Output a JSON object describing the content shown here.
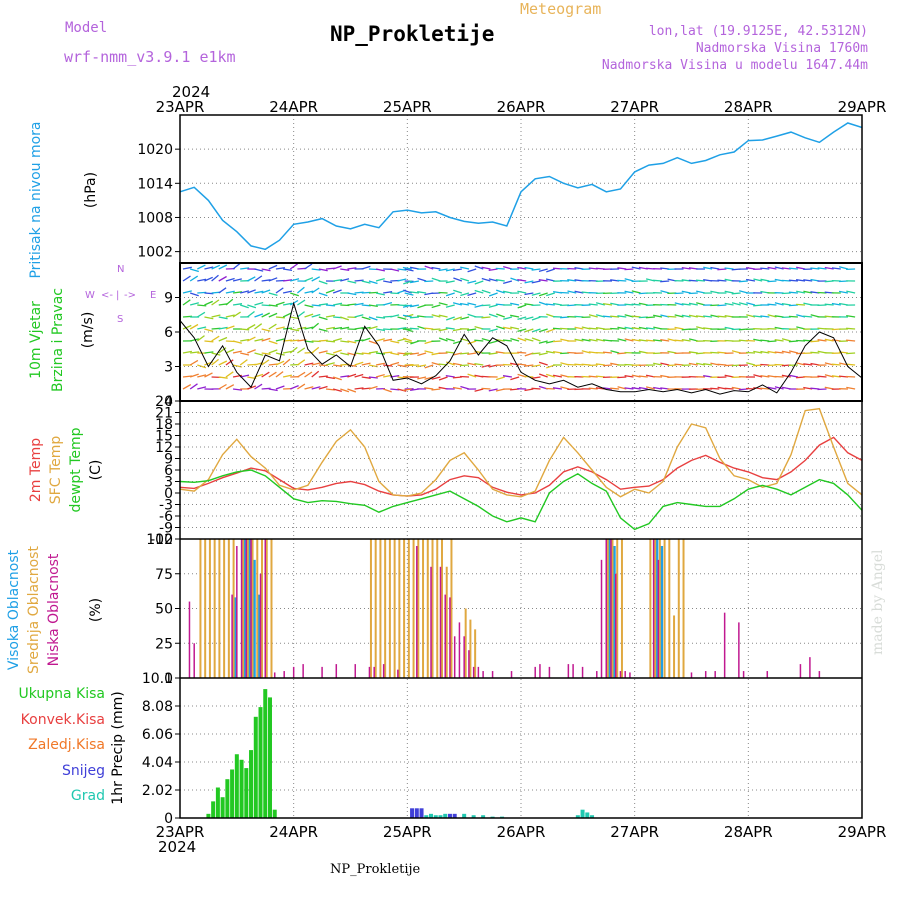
{
  "header": {
    "model_label": "Model",
    "model_name": "wrf-nmm_v3.9.1 e1km",
    "title": "NP_Prokletije",
    "meteogram_label": "Meteogram",
    "lonlat": "lon,lat (19.9125E, 42.5312N)",
    "altitude": "Nadmorska Visina 1760m",
    "model_altitude": "Nadmorska Visina u modelu 1647.44m",
    "year_top": "2024",
    "year_bottom": "2024",
    "footer_station": "NP_Prokletije",
    "credit": "made by Angel"
  },
  "colors": {
    "pressure": "#1fa0e6",
    "wind_label": "#22c822",
    "temp2m": "#e84040",
    "sfc_temp": "#e0a840",
    "dewpoint": "#22c822",
    "high_cloud": "#1fa0e6",
    "mid_cloud": "#e0a840",
    "low_cloud": "#c01890",
    "total_precip": "#22c822",
    "conv_precip": "#e84040",
    "frz_precip": "#f07828",
    "snow": "#4040d8",
    "graupel": "#20c8b0",
    "compass": "#b464dc"
  },
  "chart_data": [
    {
      "type": "line",
      "panel": "pressure",
      "ylabels": [
        "Pritisak na nivou mora",
        "(hPa)"
      ],
      "x_ticks": [
        "23APR",
        "24APR",
        "25APR",
        "26APR",
        "27APR",
        "28APR",
        "29APR"
      ],
      "ylim": [
        1000,
        1026
      ],
      "y_ticks": [
        "1002",
        "1008",
        "1014",
        "1020"
      ],
      "grid": true,
      "x": [
        0,
        3,
        6,
        9,
        12,
        15,
        18,
        21,
        24,
        27,
        30,
        33,
        36,
        39,
        42,
        45,
        48,
        51,
        54,
        57,
        60,
        63,
        66,
        69,
        72,
        75,
        78,
        81,
        84,
        87,
        90,
        93,
        96,
        99,
        102,
        105,
        108,
        111,
        114,
        117,
        120,
        123,
        126,
        129,
        132,
        135,
        138,
        141,
        144
      ],
      "series": [
        {
          "values": [
            1012.5,
            1013.3,
            1011.0,
            1007.5,
            1005.5,
            1003.0,
            1002.4,
            1004.0,
            1006.8,
            1007.2,
            1007.8,
            1006.5,
            1006.0,
            1006.8,
            1006.2,
            1009.0,
            1009.3,
            1008.8,
            1009.0,
            1008.0,
            1007.3,
            1007.0,
            1007.2,
            1006.5,
            1012.5,
            1014.8,
            1015.2,
            1014.0,
            1013.2,
            1013.8,
            1012.5,
            1013.0,
            1016.0,
            1017.2,
            1017.5,
            1018.5,
            1017.5,
            1018.0,
            1019.0,
            1019.5,
            1021.5,
            1021.6,
            1022.3,
            1023.0,
            1022.0,
            1021.2,
            1023.0,
            1024.6,
            1023.8
          ]
        }
      ]
    },
    {
      "type": "line",
      "panel": "wind",
      "ylabels": [
        "10m Vjetar",
        "Brzina i Pravac",
        "(m/s)"
      ],
      "compass": [
        "W",
        "<-",
        "|",
        "->",
        "E",
        "S",
        "N"
      ],
      "ylim": [
        0,
        12
      ],
      "y_ticks": [
        "0",
        "3",
        "6",
        "9"
      ],
      "x": [
        0,
        3,
        6,
        9,
        12,
        15,
        18,
        21,
        24,
        27,
        30,
        33,
        36,
        39,
        42,
        45,
        48,
        51,
        54,
        57,
        60,
        63,
        66,
        69,
        72,
        75,
        78,
        81,
        84,
        87,
        90,
        93,
        96,
        99,
        102,
        105,
        108,
        111,
        114,
        117,
        120,
        123,
        126,
        129,
        132,
        135,
        138,
        141,
        144
      ],
      "series": [
        {
          "name": "speed",
          "values": [
            7.0,
            5.5,
            3.0,
            4.8,
            2.5,
            1.2,
            4.0,
            3.5,
            8.5,
            4.5,
            3.2,
            4.0,
            3.0,
            6.5,
            4.8,
            1.8,
            2.0,
            1.5,
            2.2,
            3.5,
            5.8,
            4.0,
            5.5,
            4.8,
            2.5,
            1.8,
            1.5,
            1.8,
            1.2,
            1.5,
            1.0,
            0.8,
            0.8,
            1.0,
            0.8,
            1.0,
            0.7,
            1.0,
            0.6,
            0.9,
            0.8,
            1.4,
            0.7,
            2.5,
            4.8,
            6.0,
            5.5,
            3.0,
            2.0
          ]
        }
      ]
    },
    {
      "type": "line",
      "panel": "temperature",
      "ylabels": [
        "2m Temp",
        "SFC Temp",
        "dewpt Temp",
        "(C)"
      ],
      "ylim": [
        -12,
        24
      ],
      "y_ticks": [
        "-12",
        "-9",
        "-6",
        "-3",
        "0",
        "3",
        "6",
        "9",
        "12",
        "15",
        "18",
        "21",
        "24"
      ],
      "x": [
        0,
        3,
        6,
        9,
        12,
        15,
        18,
        21,
        24,
        27,
        30,
        33,
        36,
        39,
        42,
        45,
        48,
        51,
        54,
        57,
        60,
        63,
        66,
        69,
        72,
        75,
        78,
        81,
        84,
        87,
        90,
        93,
        96,
        99,
        102,
        105,
        108,
        111,
        114,
        117,
        120,
        123,
        126,
        129,
        132,
        135,
        138,
        141,
        144
      ],
      "series": [
        {
          "name": "2m Temp",
          "values": [
            1.5,
            1.2,
            2.5,
            4.0,
            5.2,
            6.5,
            5.8,
            3.5,
            1.2,
            0.8,
            1.5,
            2.5,
            3.0,
            2.2,
            0.5,
            -0.5,
            -0.8,
            -0.5,
            1.0,
            3.5,
            4.5,
            4.0,
            1.5,
            0.2,
            -0.5,
            0.0,
            2.0,
            5.5,
            6.8,
            5.5,
            3.5,
            1.0,
            1.5,
            1.8,
            3.5,
            6.5,
            8.5,
            9.8,
            8.0,
            6.5,
            5.5,
            4.0,
            3.5,
            5.5,
            8.5,
            12.5,
            14.5,
            10.5,
            8.5
          ]
        },
        {
          "name": "SFC Temp",
          "values": [
            1.0,
            0.5,
            3.5,
            10.0,
            14.0,
            9.5,
            6.5,
            2.0,
            0.8,
            2.0,
            8.0,
            13.5,
            16.5,
            12.0,
            3.0,
            -0.5,
            -0.8,
            0.0,
            3.5,
            8.5,
            10.5,
            6.0,
            1.0,
            -0.5,
            -1.0,
            0.5,
            8.5,
            14.5,
            10.5,
            6.0,
            1.5,
            -1.0,
            1.0,
            0.0,
            3.0,
            12.0,
            18.0,
            17.0,
            9.0,
            4.5,
            3.5,
            1.5,
            2.5,
            10.0,
            21.5,
            22.0,
            12.0,
            2.5,
            -0.5
          ]
        },
        {
          "name": "dewpt Temp",
          "values": [
            3.0,
            2.8,
            3.2,
            4.5,
            5.5,
            6.0,
            4.5,
            1.5,
            -1.5,
            -2.5,
            -2.0,
            -2.2,
            -2.8,
            -3.2,
            -5.0,
            -3.5,
            -2.5,
            -1.5,
            -0.5,
            0.5,
            -1.5,
            -3.5,
            -6.0,
            -7.5,
            -6.5,
            -7.5,
            0.0,
            3.0,
            5.0,
            2.5,
            0.5,
            -6.5,
            -9.5,
            -8.0,
            -3.5,
            -2.5,
            -3.0,
            -3.5,
            -3.5,
            -1.5,
            1.0,
            2.0,
            1.0,
            -0.5,
            1.5,
            3.5,
            2.5,
            -0.5,
            -4.5
          ]
        }
      ]
    },
    {
      "type": "bar",
      "panel": "cloud",
      "ylabels": [
        "Visoka Oblacnost",
        "Srednja Oblacnost",
        "Niska Oblacnost",
        "(%)"
      ],
      "ylim": [
        0,
        100
      ],
      "y_ticks": [
        "0",
        "25",
        "50",
        "75",
        "100"
      ],
      "series": [
        {
          "name": "Visoka Oblacnost",
          "x": [
            12,
            14,
            15,
            16,
            17,
            91,
            92,
            101,
            102
          ],
          "values": [
            58,
            100,
            100,
            85,
            60,
            100,
            95,
            100,
            95
          ]
        },
        {
          "name": "Srednja Oblacnost",
          "x": [
            4,
            5,
            6,
            7,
            8,
            9,
            10,
            11,
            13,
            14,
            15,
            16,
            17,
            18,
            19,
            40,
            41,
            42,
            43,
            44,
            45,
            46,
            47,
            48,
            49,
            50,
            51,
            52,
            53,
            54,
            55,
            56,
            57,
            60,
            61,
            62,
            90,
            91,
            92,
            93,
            99,
            100,
            101,
            102,
            103,
            104,
            105,
            106
          ],
          "values": [
            100,
            100,
            100,
            100,
            100,
            100,
            100,
            100,
            100,
            100,
            100,
            100,
            100,
            100,
            100,
            100,
            100,
            100,
            100,
            100,
            100,
            100,
            100,
            100,
            100,
            100,
            100,
            100,
            100,
            100,
            100,
            80,
            100,
            50,
            42,
            35,
            100,
            100,
            100,
            100,
            100,
            100,
            100,
            100,
            100,
            45,
            100,
            100
          ]
        },
        {
          "name": "Niska Oblacnost",
          "x": [
            2,
            3,
            11,
            12,
            13,
            14,
            15,
            17,
            18,
            20,
            22,
            24,
            26,
            30,
            33,
            37,
            40,
            41,
            43,
            46,
            50,
            53,
            55,
            56,
            57,
            58,
            59,
            60,
            61,
            62,
            63,
            64,
            66,
            70,
            75,
            76,
            78,
            82,
            83,
            85,
            88,
            89,
            90,
            91,
            92,
            93,
            94,
            95,
            100,
            101,
            108,
            111,
            113,
            115,
            118,
            119,
            124,
            131,
            133,
            135
          ],
          "values": [
            55,
            25,
            60,
            95,
            100,
            100,
            100,
            75,
            100,
            4,
            5,
            8,
            10,
            8,
            10,
            10,
            8,
            8,
            10,
            6,
            95,
            80,
            80,
            60,
            58,
            30,
            40,
            30,
            20,
            8,
            8,
            5,
            5,
            5,
            8,
            10,
            8,
            10,
            10,
            8,
            5,
            85,
            100,
            100,
            75,
            5,
            5,
            4,
            100,
            85,
            4,
            5,
            5,
            47,
            40,
            5,
            5,
            10,
            15,
            5
          ]
        }
      ]
    },
    {
      "type": "bar",
      "panel": "precip",
      "ylabels": [
        "1hr Precip (mm)"
      ],
      "legend": [
        "Ukupna Kisa",
        "Konvek.Kisa",
        "Zaledj.Kisa",
        "Snijeg",
        "Grad"
      ],
      "ylim": [
        0,
        10.1
      ],
      "y_ticks": [
        "0",
        "2.02",
        "4.04",
        "6.06",
        "8.08",
        "10.1"
      ],
      "series": [
        {
          "name": "Ukupna Kisa",
          "x": [
            6,
            7,
            8,
            9,
            10,
            11,
            12,
            13,
            14,
            15,
            16,
            17,
            18,
            19,
            20
          ],
          "values": [
            0.3,
            1.2,
            2.2,
            1.5,
            2.8,
            3.5,
            4.6,
            4.2,
            3.6,
            4.9,
            7.3,
            8.0,
            9.3,
            8.7,
            0.6
          ]
        },
        {
          "name": "Snijeg",
          "x": [
            49,
            50,
            51,
            57,
            58
          ],
          "values": [
            0.7,
            0.7,
            0.7,
            0.3,
            0.3
          ]
        },
        {
          "name": "Grad",
          "x": [
            52,
            53,
            54,
            55,
            56,
            60,
            62,
            64,
            66,
            68,
            84,
            85,
            86,
            87
          ],
          "values": [
            0.2,
            0.3,
            0.2,
            0.2,
            0.3,
            0.3,
            0.2,
            0.2,
            0.1,
            0.1,
            0.2,
            0.6,
            0.4,
            0.2
          ]
        }
      ]
    }
  ]
}
